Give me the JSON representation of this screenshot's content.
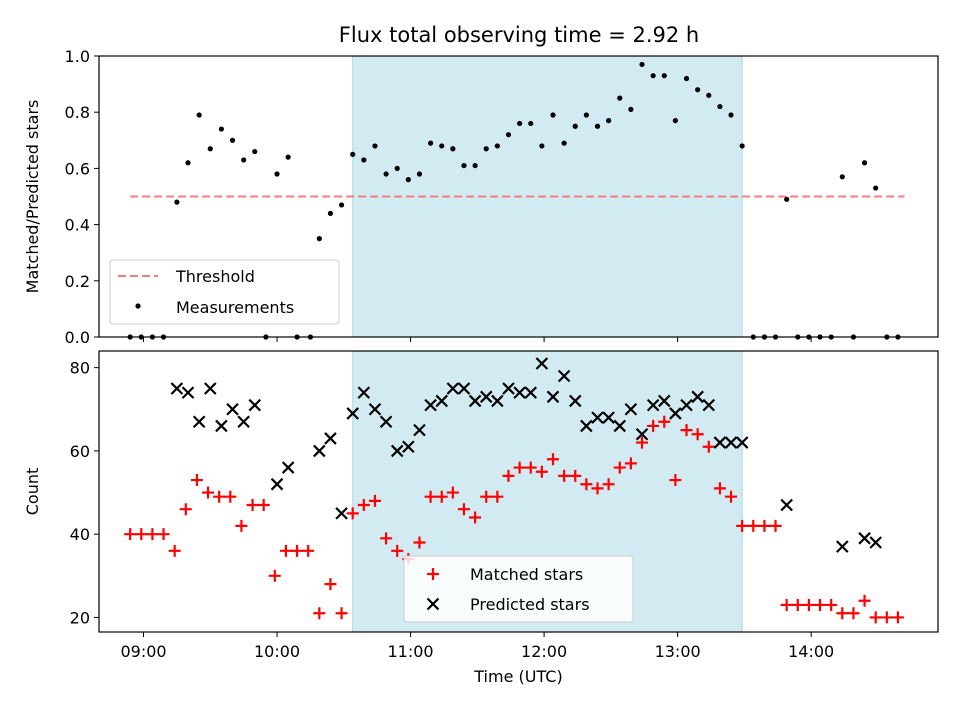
{
  "title": "Flux total observing time = 2.92 h",
  "colors": {
    "observing_window": "#add8e6",
    "threshold": "#f08080",
    "measurements": "#000000",
    "matched": "#ff0000",
    "predicted": "#000000"
  },
  "chart_data": [
    {
      "type": "scatter",
      "ylabel": "Matched/Predicted stars",
      "ylim": [
        0,
        1.0
      ],
      "yticks": [
        "0.0",
        "0.2",
        "0.4",
        "0.6",
        "0.8",
        "1.0"
      ],
      "xlim": [
        "08:40",
        "14:57"
      ],
      "observing_window": [
        "10:34",
        "13:29"
      ],
      "legend": {
        "placement": "lower-left"
      },
      "threshold": {
        "name": "Threshold",
        "value": 0.5,
        "x": [
          "08:54",
          "14:42"
        ]
      },
      "series": [
        {
          "name": "Measurements",
          "points": [
            [
              "08:54",
              0
            ],
            [
              "08:59",
              0
            ],
            [
              "09:04",
              0
            ],
            [
              "09:09",
              0
            ],
            [
              "09:15",
              0.48
            ],
            [
              "09:20",
              0.62
            ],
            [
              "09:25",
              0.79
            ],
            [
              "09:30",
              0.67
            ],
            [
              "09:35",
              0.74
            ],
            [
              "09:40",
              0.7
            ],
            [
              "09:45",
              0.63
            ],
            [
              "09:50",
              0.66
            ],
            [
              "09:55",
              0
            ],
            [
              "10:00",
              0.58
            ],
            [
              "10:05",
              0.64
            ],
            [
              "10:09",
              0
            ],
            [
              "10:15",
              0
            ],
            [
              "10:19",
              0.35
            ],
            [
              "10:24",
              0.44
            ],
            [
              "10:29",
              0.47
            ],
            [
              "10:34",
              0.65
            ],
            [
              "10:39",
              0.63
            ],
            [
              "10:44",
              0.68
            ],
            [
              "10:49",
              0.58
            ],
            [
              "10:54",
              0.6
            ],
            [
              "10:59",
              0.56
            ],
            [
              "11:04",
              0.58
            ],
            [
              "11:09",
              0.69
            ],
            [
              "11:14",
              0.68
            ],
            [
              "11:19",
              0.67
            ],
            [
              "11:24",
              0.61
            ],
            [
              "11:29",
              0.61
            ],
            [
              "11:34",
              0.67
            ],
            [
              "11:39",
              0.68
            ],
            [
              "11:44",
              0.72
            ],
            [
              "11:49",
              0.76
            ],
            [
              "11:54",
              0.76
            ],
            [
              "11:59",
              0.68
            ],
            [
              "12:04",
              0.79
            ],
            [
              "12:09",
              0.69
            ],
            [
              "12:14",
              0.75
            ],
            [
              "12:19",
              0.79
            ],
            [
              "12:24",
              0.75
            ],
            [
              "12:29",
              0.77
            ],
            [
              "12:34",
              0.85
            ],
            [
              "12:39",
              0.81
            ],
            [
              "12:44",
              0.97
            ],
            [
              "12:49",
              0.93
            ],
            [
              "12:54",
              0.93
            ],
            [
              "12:59",
              0.77
            ],
            [
              "13:04",
              0.92
            ],
            [
              "13:09",
              0.88
            ],
            [
              "13:14",
              0.86
            ],
            [
              "13:19",
              0.82
            ],
            [
              "13:24",
              0.79
            ],
            [
              "13:29",
              0.68
            ],
            [
              "13:34",
              0
            ],
            [
              "13:39",
              0
            ],
            [
              "13:44",
              0
            ],
            [
              "13:49",
              0.49
            ],
            [
              "13:54",
              0
            ],
            [
              "13:59",
              0
            ],
            [
              "14:04",
              0
            ],
            [
              "14:09",
              0
            ],
            [
              "14:14",
              0.57
            ],
            [
              "14:19",
              0
            ],
            [
              "14:24",
              0.62
            ],
            [
              "14:29",
              0.53
            ],
            [
              "14:34",
              0
            ],
            [
              "14:39",
              0
            ]
          ]
        }
      ]
    },
    {
      "type": "scatter",
      "xlabel": "Time (UTC)",
      "ylabel": "Count",
      "ylim": [
        16.5,
        84
      ],
      "yticks": [
        "20",
        "40",
        "60",
        "80"
      ],
      "xlim": [
        "08:40",
        "14:57"
      ],
      "xticks": [
        "09:00",
        "10:00",
        "11:00",
        "12:00",
        "13:00",
        "14:00"
      ],
      "observing_window": [
        "10:34",
        "13:29"
      ],
      "legend": {
        "placement": "lower-center"
      },
      "series": [
        {
          "name": "Matched stars",
          "marker": "+",
          "points": [
            [
              "08:54",
              40
            ],
            [
              "08:59",
              40
            ],
            [
              "09:04",
              40
            ],
            [
              "09:09",
              40
            ],
            [
              "09:14",
              36
            ],
            [
              "09:19",
              46
            ],
            [
              "09:24",
              53
            ],
            [
              "09:29",
              50
            ],
            [
              "09:34",
              49
            ],
            [
              "09:39",
              49
            ],
            [
              "09:44",
              42
            ],
            [
              "09:49",
              47
            ],
            [
              "09:54",
              47
            ],
            [
              "09:59",
              30
            ],
            [
              "10:04",
              36
            ],
            [
              "10:09",
              36
            ],
            [
              "10:14",
              36
            ],
            [
              "10:19",
              21
            ],
            [
              "10:24",
              28
            ],
            [
              "10:29",
              21
            ],
            [
              "10:34",
              45
            ],
            [
              "10:39",
              47
            ],
            [
              "10:44",
              48
            ],
            [
              "10:49",
              39
            ],
            [
              "10:54",
              36
            ],
            [
              "10:59",
              34
            ],
            [
              "11:04",
              38
            ],
            [
              "11:09",
              49
            ],
            [
              "11:14",
              49
            ],
            [
              "11:19",
              50
            ],
            [
              "11:24",
              46
            ],
            [
              "11:29",
              44
            ],
            [
              "11:34",
              49
            ],
            [
              "11:39",
              49
            ],
            [
              "11:44",
              54
            ],
            [
              "11:49",
              56
            ],
            [
              "11:54",
              56
            ],
            [
              "11:59",
              55
            ],
            [
              "12:04",
              58
            ],
            [
              "12:09",
              54
            ],
            [
              "12:14",
              54
            ],
            [
              "12:19",
              52
            ],
            [
              "12:24",
              51
            ],
            [
              "12:29",
              52
            ],
            [
              "12:34",
              56
            ],
            [
              "12:39",
              57
            ],
            [
              "12:44",
              62
            ],
            [
              "12:49",
              66
            ],
            [
              "12:54",
              67
            ],
            [
              "12:59",
              53
            ],
            [
              "13:04",
              65
            ],
            [
              "13:09",
              64
            ],
            [
              "13:14",
              61
            ],
            [
              "13:19",
              51
            ],
            [
              "13:24",
              49
            ],
            [
              "13:29",
              42
            ],
            [
              "13:34",
              42
            ],
            [
              "13:39",
              42
            ],
            [
              "13:44",
              42
            ],
            [
              "13:49",
              23
            ],
            [
              "13:54",
              23
            ],
            [
              "13:59",
              23
            ],
            [
              "14:04",
              23
            ],
            [
              "14:09",
              23
            ],
            [
              "14:14",
              21
            ],
            [
              "14:19",
              21
            ],
            [
              "14:24",
              24
            ],
            [
              "14:29",
              20
            ],
            [
              "14:34",
              20
            ],
            [
              "14:39",
              20
            ]
          ]
        },
        {
          "name": "Predicted stars",
          "marker": "x",
          "points": [
            [
              "09:15",
              75
            ],
            [
              "09:20",
              74
            ],
            [
              "09:25",
              67
            ],
            [
              "09:30",
              75
            ],
            [
              "09:35",
              66
            ],
            [
              "09:40",
              70
            ],
            [
              "09:45",
              67
            ],
            [
              "09:50",
              71
            ],
            [
              "10:00",
              52
            ],
            [
              "10:05",
              56
            ],
            [
              "10:19",
              60
            ],
            [
              "10:24",
              63
            ],
            [
              "10:29",
              45
            ],
            [
              "10:34",
              69
            ],
            [
              "10:39",
              74
            ],
            [
              "10:44",
              70
            ],
            [
              "10:49",
              67
            ],
            [
              "10:54",
              60
            ],
            [
              "10:59",
              61
            ],
            [
              "11:04",
              65
            ],
            [
              "11:09",
              71
            ],
            [
              "11:14",
              72
            ],
            [
              "11:19",
              75
            ],
            [
              "11:24",
              75
            ],
            [
              "11:29",
              72
            ],
            [
              "11:34",
              73
            ],
            [
              "11:39",
              72
            ],
            [
              "11:44",
              75
            ],
            [
              "11:49",
              74
            ],
            [
              "11:54",
              74
            ],
            [
              "11:59",
              81
            ],
            [
              "12:04",
              73
            ],
            [
              "12:09",
              78
            ],
            [
              "12:14",
              72
            ],
            [
              "12:19",
              66
            ],
            [
              "12:24",
              68
            ],
            [
              "12:29",
              68
            ],
            [
              "12:34",
              66
            ],
            [
              "12:39",
              70
            ],
            [
              "12:44",
              64
            ],
            [
              "12:49",
              71
            ],
            [
              "12:54",
              72
            ],
            [
              "12:59",
              69
            ],
            [
              "13:04",
              71
            ],
            [
              "13:09",
              73
            ],
            [
              "13:14",
              71
            ],
            [
              "13:19",
              62
            ],
            [
              "13:24",
              62
            ],
            [
              "13:29",
              62
            ],
            [
              "13:49",
              47
            ],
            [
              "14:14",
              37
            ],
            [
              "14:24",
              39
            ],
            [
              "14:29",
              38
            ]
          ]
        }
      ]
    }
  ]
}
